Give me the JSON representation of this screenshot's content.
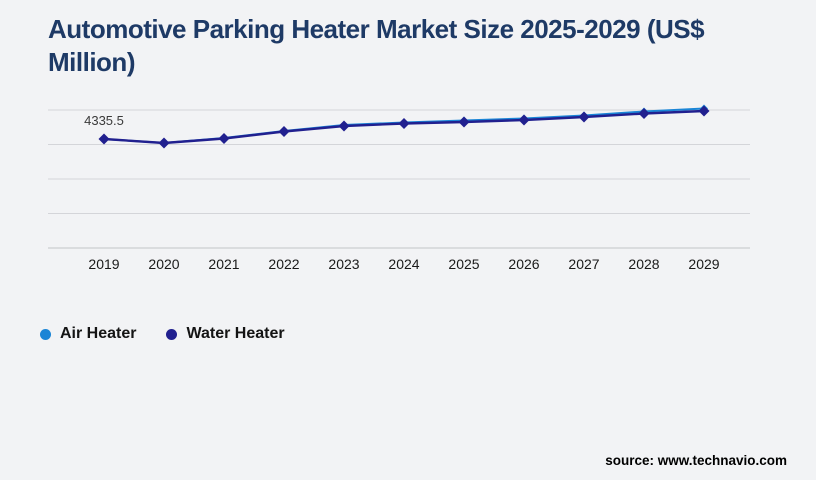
{
  "title": {
    "lines": [
      "Automotive Parking Heater Market Size 2025-2029 (US$",
      "Million)"
    ]
  },
  "chart_data": {
    "type": "line",
    "title": "Automotive Parking Heater Market Size 2025-2029 (US$ Million)",
    "categories": [
      "2019",
      "2020",
      "2021",
      "2022",
      "2023",
      "2024",
      "2025",
      "2026",
      "2027",
      "2028",
      "2029"
    ],
    "series": [
      {
        "name": "Air Heater",
        "color": "#1a85d6",
        "marker": "diamond",
        "values": [
          4335.5,
          4177,
          4375,
          4655,
          4893,
          4992,
          5072,
          5151,
          5271,
          5430,
          5549
        ]
      },
      {
        "name": "Water Heater",
        "color": "#21208f",
        "marker": "diamond",
        "values": [
          4335.5,
          4177,
          4356,
          4634,
          4853,
          4952,
          5012,
          5092,
          5211,
          5350,
          5450
        ]
      }
    ],
    "data_labels": [
      {
        "category": "2019",
        "text": "4335.5",
        "value": 4335.5
      }
    ],
    "xlabel": "",
    "ylabel": "",
    "ylim": [
      0,
      5600
    ],
    "grid": "horizontal",
    "y_axis_labels_visible": false,
    "legend_position": "bottom-left"
  },
  "source": {
    "text": "source: www.technavio.com"
  },
  "colors": {
    "background": "#f2f3f5",
    "title_text": "#1e3a66",
    "gridline": "#d4d5d9",
    "axis_line": "#c3c4c8",
    "tick_text": "#1a1a1a",
    "data_label_text": "#3a3a3a",
    "air_heater": "#1a85d6",
    "water_heater": "#21208f"
  }
}
